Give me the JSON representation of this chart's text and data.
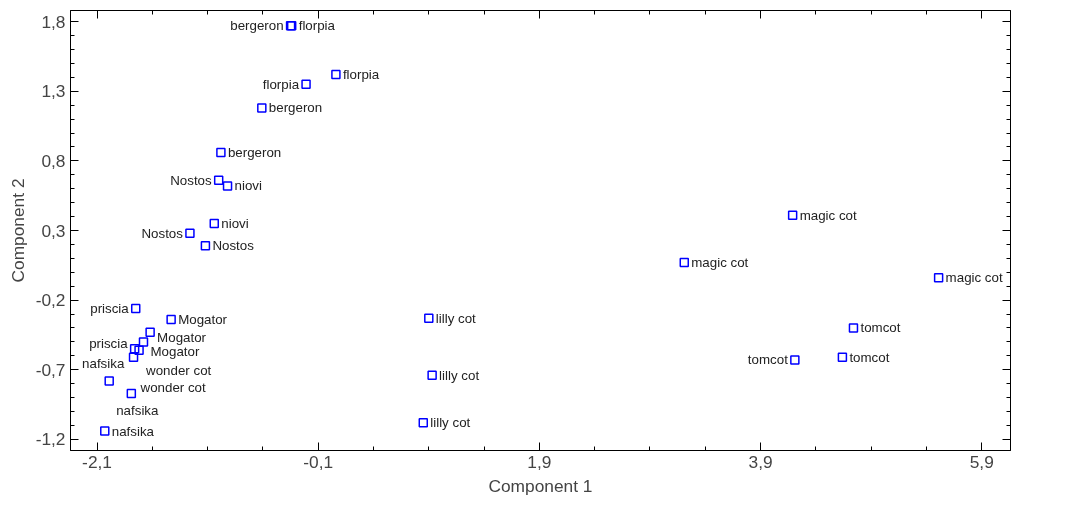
{
  "chart_data": {
    "type": "scatter",
    "xlabel": "Component 1",
    "ylabel": "Component 2",
    "x": [
      -0.35,
      -0.34,
      0.06,
      -0.21,
      -0.61,
      -0.98,
      -1.0,
      -0.92,
      -1.04,
      -1.26,
      -1.12,
      -1.75,
      -1.43,
      -1.62,
      -1.68,
      -1.76,
      -1.72,
      -1.77,
      -1.99,
      -1.79,
      -2.03,
      0.9,
      0.93,
      0.85,
      4.19,
      3.21,
      5.51,
      4.74,
      4.21,
      4.64
    ],
    "series": [
      {
        "color": "#0000ff",
        "values": [
          1.77,
          1.77,
          1.42,
          1.35,
          1.18,
          0.86,
          0.66,
          0.62,
          0.35,
          0.28,
          0.19,
          -0.26,
          -0.34,
          -0.43,
          -0.5,
          -0.55,
          -0.56,
          -0.61,
          -0.78,
          -0.87,
          -1.14,
          -0.33,
          -0.74,
          -1.08,
          0.41,
          0.07,
          -0.04,
          -0.4,
          -0.63,
          -0.61
        ]
      }
    ],
    "annotations": [
      {
        "text": "bergeron",
        "x": -0.35,
        "y": 1.77
      },
      {
        "text": "florpia",
        "x": -0.34,
        "y": 1.77
      },
      {
        "text": "florpia",
        "x": 0.06,
        "y": 1.42
      },
      {
        "text": "florpia",
        "x": -0.21,
        "y": 1.35
      },
      {
        "text": "bergeron",
        "x": -0.61,
        "y": 1.18
      },
      {
        "text": "bergeron",
        "x": -0.98,
        "y": 0.86
      },
      {
        "text": "Nostos",
        "x": -1.0,
        "y": 0.66
      },
      {
        "text": "niovi",
        "x": -0.92,
        "y": 0.62
      },
      {
        "text": "niovi",
        "x": -1.04,
        "y": 0.35
      },
      {
        "text": "Nostos",
        "x": -1.26,
        "y": 0.28
      },
      {
        "text": "Nostos",
        "x": -1.12,
        "y": 0.19
      },
      {
        "text": "priscia",
        "x": -1.75,
        "y": -0.26
      },
      {
        "text": "Mogator",
        "x": -1.43,
        "y": -0.34
      },
      {
        "text": "Mogator",
        "x": -1.62,
        "y": -0.43
      },
      {
        "text": "Mogator",
        "x": -1.68,
        "y": -0.5
      },
      {
        "text": "priscia",
        "x": -1.76,
        "y": -0.55
      },
      {
        "text": "wonder cot",
        "x": -1.72,
        "y": -0.56
      },
      {
        "text": "wonder cot",
        "x": -1.77,
        "y": -0.61
      },
      {
        "text": "nafsika",
        "x": -1.99,
        "y": -0.78
      },
      {
        "text": "nafsika",
        "x": -1.79,
        "y": -0.87
      },
      {
        "text": "nafsika",
        "x": -2.03,
        "y": -1.14
      },
      {
        "text": "lilly cot",
        "x": 0.9,
        "y": -0.33
      },
      {
        "text": "lilly cot",
        "x": 0.93,
        "y": -0.74
      },
      {
        "text": "lilly cot",
        "x": 0.85,
        "y": -1.08
      },
      {
        "text": "magic cot",
        "x": 4.19,
        "y": 0.41
      },
      {
        "text": "magic cot",
        "x": 3.21,
        "y": 0.07
      },
      {
        "text": "magic cot",
        "x": 5.51,
        "y": -0.04
      },
      {
        "text": "tomcot",
        "x": 4.74,
        "y": -0.4
      },
      {
        "text": "tomcot",
        "x": 4.21,
        "y": -0.63
      },
      {
        "text": "tomcot",
        "x": 4.64,
        "y": -0.61
      }
    ],
    "marker": "square",
    "grid": false,
    "xlim": [
      -2.34,
      6.16
    ],
    "ylim": [
      -1.28,
      1.88
    ],
    "xticks": [
      {
        "value": -2.1,
        "label": "-2,1"
      },
      {
        "value": -0.1,
        "label": "-0,1"
      },
      {
        "value": 1.9,
        "label": "1,9"
      },
      {
        "value": 3.9,
        "label": "3,9"
      },
      {
        "value": 5.9,
        "label": "5,9"
      }
    ],
    "yticks": [
      {
        "value": -1.2,
        "label": "-1,2"
      },
      {
        "value": -0.7,
        "label": "-0,7"
      },
      {
        "value": -0.2,
        "label": "-0,2"
      },
      {
        "value": 0.3,
        "label": "0,3"
      },
      {
        "value": 0.8,
        "label": "0,8"
      },
      {
        "value": 1.3,
        "label": "1,3"
      },
      {
        "value": 1.8,
        "label": "1,8"
      }
    ]
  }
}
